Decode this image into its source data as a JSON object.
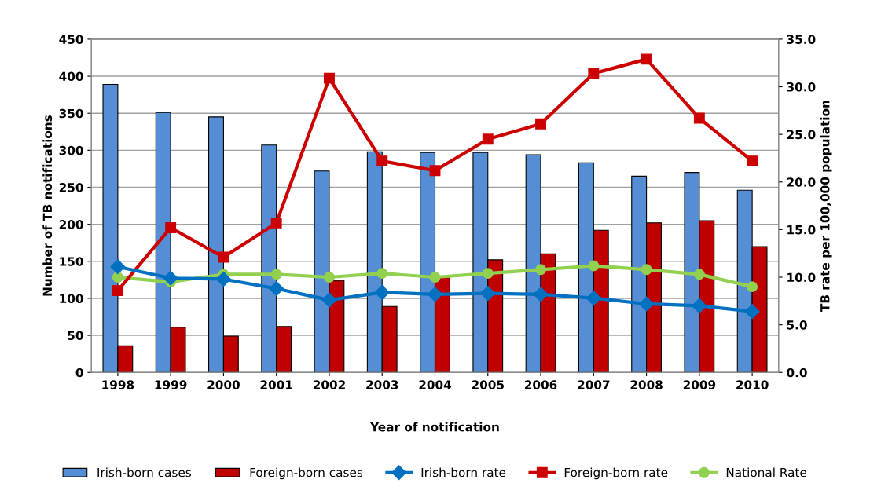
{
  "chart_data": {
    "type": "bar",
    "xlabel": "Year of notification",
    "ylabel": "Number of TB notifications",
    "y2label": "TB rate per 100,000 population",
    "categories": [
      "1998",
      "1999",
      "2000",
      "2001",
      "2002",
      "2003",
      "2004",
      "2005",
      "2006",
      "2007",
      "2008",
      "2009",
      "2010"
    ],
    "series": [
      {
        "name": "Irish-born cases",
        "color": "#558ed5",
        "values": [
          389,
          351,
          345,
          307,
          272,
          298,
          297,
          297,
          294,
          283,
          265,
          270,
          246
        ]
      },
      {
        "name": "Foreign-born cases",
        "color": "#c00000",
        "values": [
          36,
          61,
          49,
          62,
          124,
          89,
          130,
          152,
          160,
          192,
          202,
          205,
          170
        ]
      },
      {
        "name": "Irish-born rate",
        "type": "line",
        "axis": "y2",
        "color": "#0070c0",
        "marker": "diamond",
        "values": [
          11.1,
          9.9,
          9.8,
          8.8,
          7.6,
          8.4,
          8.2,
          8.3,
          8.2,
          7.8,
          7.2,
          7.0,
          6.4
        ]
      },
      {
        "name": "Foreign-born rate",
        "type": "line",
        "axis": "y2",
        "color": "#cc0000",
        "marker": "square",
        "values": [
          8.6,
          15.2,
          12.1,
          15.7,
          30.9,
          22.2,
          21.2,
          24.5,
          26.1,
          31.4,
          32.9,
          26.7,
          22.2
        ]
      },
      {
        "name": "National Rate",
        "type": "line",
        "axis": "y2",
        "color": "#92d050",
        "marker": "circle",
        "values": [
          10.0,
          9.5,
          10.3,
          10.3,
          10.0,
          10.4,
          10.0,
          10.4,
          10.8,
          11.2,
          10.8,
          10.3,
          9.0
        ]
      }
    ],
    "ylim": [
      0,
      450
    ],
    "yticks": [
      0,
      50,
      100,
      150,
      200,
      250,
      300,
      350,
      400,
      450
    ],
    "y2lim": [
      0,
      35
    ],
    "y2ticks": [
      {
        "value": 0,
        "label": "0.0"
      },
      {
        "value": 5,
        "label": "5.0"
      },
      {
        "value": 10,
        "label": "10.0"
      },
      {
        "value": 15,
        "label": "15.0"
      },
      {
        "value": 20,
        "label": "20.0"
      },
      {
        "value": 25,
        "label": "25.0"
      },
      {
        "value": 30,
        "label": "30.0"
      },
      {
        "value": 35,
        "label": "35.0"
      }
    ],
    "grid": "y",
    "legend": "bottom"
  }
}
